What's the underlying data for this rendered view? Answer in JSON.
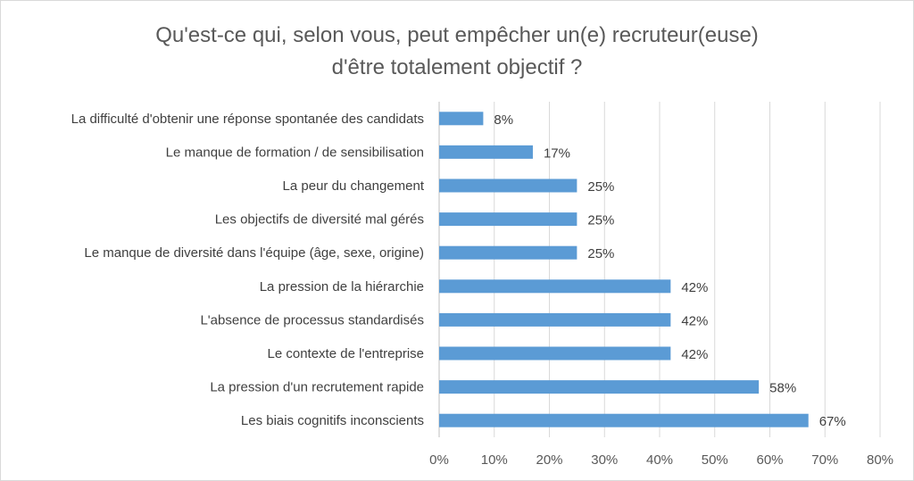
{
  "chart_data": {
    "type": "bar",
    "orientation": "horizontal",
    "title_lines": [
      "Qu'est-ce qui, selon vous, peut empêcher un(e) recruteur(euse)",
      "d'être totalement objectif ?"
    ],
    "categories": [
      "La difficulté d'obtenir une réponse spontanée des candidats",
      "Le manque de formation / de sensibilisation",
      "La peur du changement",
      "Les objectifs de diversité mal gérés",
      "Le manque de diversité dans l'équipe (âge, sexe, origine)",
      "La pression de la hiérarchie",
      "L'absence de processus standardisés",
      "Le contexte de l'entreprise",
      "La pression d'un recrutement rapide",
      "Les biais cognitifs inconscients"
    ],
    "values": [
      8,
      17,
      25,
      25,
      25,
      42,
      42,
      42,
      58,
      67
    ],
    "data_labels": [
      "8%",
      "17%",
      "25%",
      "25%",
      "25%",
      "42%",
      "42%",
      "42%",
      "58%",
      "67%"
    ],
    "x_ticks": [
      0,
      10,
      20,
      30,
      40,
      50,
      60,
      70,
      80
    ],
    "x_tick_labels": [
      "0%",
      "10%",
      "20%",
      "30%",
      "40%",
      "50%",
      "60%",
      "70%",
      "80%"
    ],
    "xlim": [
      0,
      80
    ],
    "grid": true,
    "legend": "none",
    "bar_color": "#5b9bd5",
    "grid_color": "#d9d9d9",
    "text_color": "#595959"
  }
}
